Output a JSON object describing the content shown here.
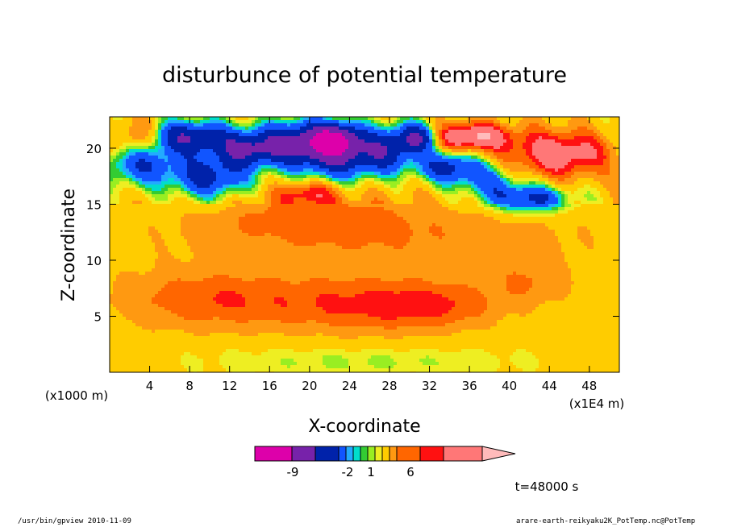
{
  "chart_data": {
    "type": "heatmap",
    "title": "disturbunce of potential temperature",
    "xlabel": "X-coordinate",
    "ylabel": "Z-coordinate",
    "x_unit_left": "(x1000 m)",
    "x_unit_right": "(x1E4 m)",
    "x_ticks": [
      4,
      8,
      12,
      16,
      20,
      24,
      28,
      32,
      36,
      40,
      44,
      48
    ],
    "y_ticks": [
      5,
      10,
      15,
      20
    ],
    "xlim": [
      0,
      51
    ],
    "ylim": [
      0,
      22.8
    ],
    "colorbar": {
      "colors": [
        "#dd00aa",
        "#7722aa",
        "#0022aa",
        "#1155ff",
        "#22aaff",
        "#00ddcc",
        "#33cc33",
        "#99ee22",
        "#eeee22",
        "#ffcc00",
        "#ff9911",
        "#ff6600",
        "#ff1111",
        "#ff7777",
        "#ffbbbb"
      ],
      "tick_labels": [
        "-9",
        "-2",
        "1",
        "6"
      ]
    },
    "fields": [
      {
        "x": 3,
        "z": 18.5,
        "value": -4,
        "sx": 3.5,
        "sz": 1.8
      },
      {
        "x": 8,
        "z": 21,
        "value": -6,
        "sx": 4,
        "sz": 1.5
      },
      {
        "x": 10,
        "z": 17.5,
        "value": -5,
        "sx": 4,
        "sz": 2
      },
      {
        "x": 14,
        "z": 20,
        "value": -6,
        "sx": 3,
        "sz": 1.6
      },
      {
        "x": 18.5,
        "z": 20.5,
        "value": -6,
        "sx": 3,
        "sz": 2
      },
      {
        "x": 22.5,
        "z": 20.8,
        "value": -9,
        "sx": 2.5,
        "sz": 1.5
      },
      {
        "x": 23,
        "z": 19,
        "value": -5,
        "sx": 4,
        "sz": 2
      },
      {
        "x": 28,
        "z": 20,
        "value": -5,
        "sx": 3,
        "sz": 2
      },
      {
        "x": 31,
        "z": 21,
        "value": -6,
        "sx": 2,
        "sz": 1.2
      },
      {
        "x": 34,
        "z": 18.3,
        "value": -5,
        "sx": 3,
        "sz": 1.4
      },
      {
        "x": 42,
        "z": 15.5,
        "value": -5,
        "sx": 4,
        "sz": 1.2
      },
      {
        "x": 38,
        "z": 17,
        "value": -3,
        "sx": 3,
        "sz": 1.5
      },
      {
        "x": 36,
        "z": 21,
        "value": 6,
        "sx": 4,
        "sz": 1.2
      },
      {
        "x": 45,
        "z": 19.5,
        "value": 5,
        "sx": 5,
        "sz": 2
      },
      {
        "x": 3,
        "z": 21,
        "value": 3,
        "sx": 2,
        "sz": 1.5
      },
      {
        "x": 20,
        "z": 16,
        "value": 3,
        "sx": 3,
        "sz": 1
      },
      {
        "x": 20,
        "z": 14,
        "value": 1.5,
        "sx": 10,
        "sz": 2
      },
      {
        "x": 10,
        "z": 6.5,
        "value": 2.5,
        "sx": 9,
        "sz": 2.5
      },
      {
        "x": 25,
        "z": 6,
        "value": 2.5,
        "sx": 9,
        "sz": 2.5
      },
      {
        "x": 33,
        "z": 6,
        "value": 2,
        "sx": 6,
        "sz": 2
      },
      {
        "x": 42,
        "z": 8,
        "value": 1.5,
        "sx": 4,
        "sz": 2
      },
      {
        "x": 27,
        "z": 12,
        "value": 1.5,
        "sx": 20,
        "sz": 3
      },
      {
        "x": 25,
        "z": 1,
        "value": -1,
        "sx": 18,
        "sz": 1.5
      }
    ]
  },
  "colorbar_ticks": {
    "t0": "-9",
    "t1": "-2",
    "t2": "1",
    "t3": "6"
  },
  "time_label": "t=48000 s",
  "footer": {
    "left": "/usr/bin/gpview   2010-11-09",
    "right": "arare-earth-reikyaku2K_PotTemp.nc@PotTemp"
  }
}
